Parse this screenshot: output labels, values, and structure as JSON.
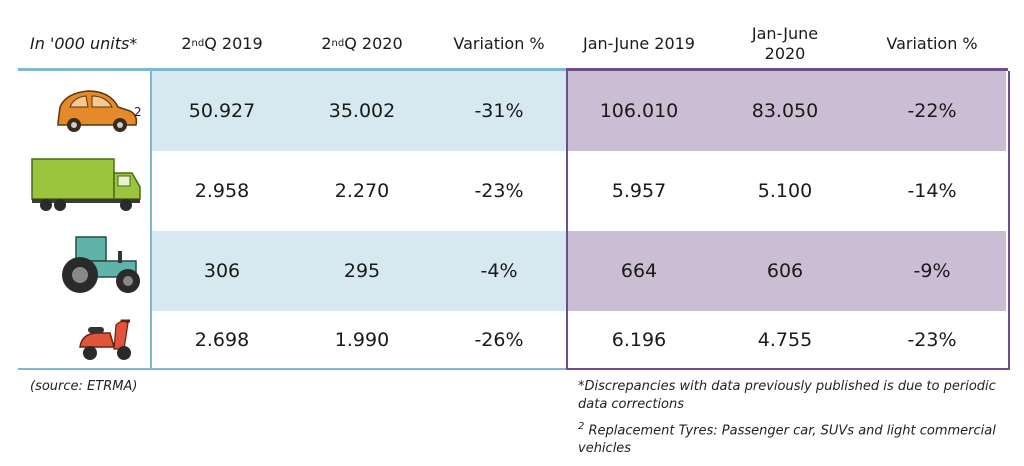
{
  "header": {
    "units": "In '000 units*",
    "q2019_prefix": "2",
    "q2019_sup": "nd",
    "q2019_suffix": " Q 2019",
    "q2020_prefix": "2",
    "q2020_sup": "nd",
    "q2020_suffix": " Q 2020",
    "variation1": "Variation %",
    "jan2019": "Jan-June 2019",
    "jan2020_line1": "Jan-June",
    "jan2020_line2": "2020",
    "variation2": "Variation %"
  },
  "rows": [
    {
      "icon": "car-icon",
      "icon_sup": "2",
      "q2019": "50.927",
      "q2020": "35.002",
      "var1": "-31%",
      "jan2019": "106.010",
      "jan2020": "83.050",
      "var2": "-22%"
    },
    {
      "icon": "truck-icon",
      "q2019": "2.958",
      "q2020": "2.270",
      "var1": "-23%",
      "jan2019": "5.957",
      "jan2020": "5.100",
      "var2": "-14%"
    },
    {
      "icon": "tractor-icon",
      "q2019": "306",
      "q2020": "295",
      "var1": "-4%",
      "jan2019": "664",
      "jan2020": "606",
      "var2": "-9%"
    },
    {
      "icon": "scooter-icon",
      "q2019": "2.698",
      "q2020": "1.990",
      "var1": "-26%",
      "jan2019": "6.196",
      "jan2020": "4.755",
      "var2": "-23%"
    }
  ],
  "footer": {
    "source": "(source: ETRMA)",
    "note1": "*Discrepancies with data previously published is due to periodic data corrections",
    "note2_sup": "2",
    "note2": " Replacement Tyres: Passenger car, SUVs and light commercial vehicles"
  },
  "colors": {
    "blue_band": "#d6e9f0",
    "lilac_band": "#cbbdd3",
    "blue_line": "#7fb8cf",
    "purple_line": "#6b4e8a"
  }
}
